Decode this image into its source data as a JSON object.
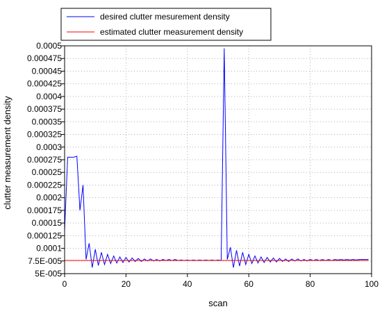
{
  "chart_data": {
    "type": "line",
    "xlabel": "scan",
    "ylabel": "clutter measurement density",
    "xlim": [
      0,
      100
    ],
    "ylim": [
      5e-05,
      0.0005
    ],
    "x_ticks": [
      0,
      20,
      40,
      60,
      80,
      100
    ],
    "x_tick_labels": [
      "0",
      "20",
      "40",
      "60",
      "80",
      "100"
    ],
    "y_ticks": [
      5e-05,
      7.5e-05,
      0.0001,
      0.000125,
      0.00015,
      0.000175,
      0.0002,
      0.000225,
      0.00025,
      0.000275,
      0.0003,
      0.000325,
      0.00035,
      0.000375,
      0.0004,
      0.000425,
      0.00045,
      0.000475,
      0.0005
    ],
    "y_tick_labels": [
      "5E-005",
      "7.5E-005",
      "0.0001",
      "0.000125",
      "0.00015",
      "0.000175",
      "0.0002",
      "0.000225",
      "0.00025",
      "0.000275",
      "0.0003",
      "0.000325",
      "0.00035",
      "0.000375",
      "0.0004",
      "0.000425",
      "0.00045",
      "0.000475",
      "0.0005"
    ],
    "grid": true,
    "grid_style": "dotted",
    "legend_position": "top-left",
    "series": [
      {
        "name": "desired clutter mesurement density",
        "color": "#0000ff",
        "x": [
          0,
          1,
          2,
          3,
          4,
          5,
          6,
          7,
          8,
          9,
          10,
          11,
          12,
          13,
          14,
          15,
          16,
          17,
          18,
          19,
          20,
          21,
          22,
          23,
          24,
          25,
          26,
          27,
          28,
          29,
          30,
          31,
          32,
          33,
          34,
          35,
          36,
          37,
          38,
          39,
          40,
          41,
          42,
          43,
          44,
          45,
          46,
          47,
          48,
          49,
          50,
          51,
          52,
          53,
          54,
          55,
          56,
          57,
          58,
          59,
          60,
          61,
          62,
          63,
          64,
          65,
          66,
          67,
          68,
          69,
          70,
          71,
          72,
          73,
          74,
          75,
          76,
          77,
          78,
          79,
          80,
          81,
          82,
          83,
          84,
          85,
          86,
          87,
          88,
          89,
          90,
          91,
          92,
          93,
          94,
          95,
          96,
          97,
          98,
          99
        ],
        "y": [
          0.000135,
          0.00028,
          0.00028,
          0.00028,
          0.000282,
          0.000175,
          0.000225,
          7.8e-05,
          0.00011,
          6.2e-05,
          9.8e-05,
          6.6e-05,
          9.2e-05,
          6.8e-05,
          8.8e-05,
          7e-05,
          8.5e-05,
          7.1e-05,
          8.3e-05,
          7.2e-05,
          8.2e-05,
          7.3e-05,
          8.1e-05,
          7.4e-05,
          8e-05,
          7.4e-05,
          7.9e-05,
          7.5e-05,
          7.9e-05,
          7.5e-05,
          7.8e-05,
          7.5e-05,
          7.8e-05,
          7.6e-05,
          7.8e-05,
          7.6e-05,
          7.8e-05,
          7.6e-05,
          7.7e-05,
          7.6e-05,
          7.7e-05,
          7.6e-05,
          7.7e-05,
          7.6e-05,
          7.7e-05,
          7.6e-05,
          7.7e-05,
          7.6e-05,
          7.7e-05,
          7.6e-05,
          7.7e-05,
          7.6e-05,
          0.000495,
          7.8e-05,
          0.000102,
          6.2e-05,
          9.6e-05,
          6.5e-05,
          9.2e-05,
          6.8e-05,
          8.8e-05,
          7e-05,
          8.5e-05,
          7.1e-05,
          8.3e-05,
          7.2e-05,
          8.2e-05,
          7.3e-05,
          8.1e-05,
          7.3e-05,
          8e-05,
          7.4e-05,
          7.9e-05,
          7.4e-05,
          7.9e-05,
          7.5e-05,
          7.9e-05,
          7.5e-05,
          7.8e-05,
          7.5e-05,
          7.8e-05,
          7.6e-05,
          7.8e-05,
          7.6e-05,
          7.8e-05,
          7.6e-05,
          7.8e-05,
          7.6e-05,
          7.8e-05,
          7.7e-05,
          7.8e-05,
          7.7e-05,
          7.8e-05,
          7.7e-05,
          7.8e-05,
          7.7e-05,
          7.8e-05,
          7.8e-05,
          7.8e-05,
          7.8e-05
        ]
      },
      {
        "name": "estimated clutter measurement density",
        "color": "#ff0000",
        "x": [
          0,
          99
        ],
        "y": [
          7.6e-05,
          7.6e-05
        ]
      }
    ]
  }
}
